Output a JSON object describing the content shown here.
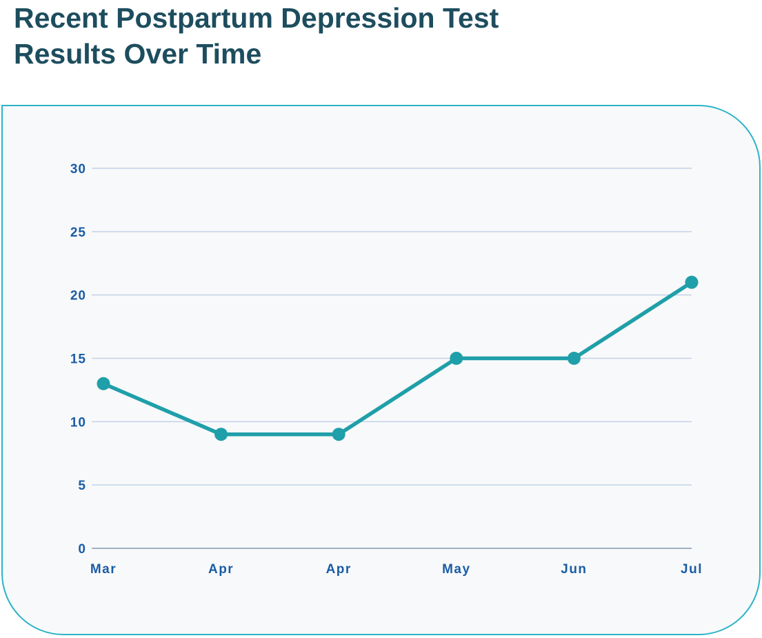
{
  "page": {
    "title_line1": "Recent Postpartum Depression Test",
    "title_line2": "Results Over Time"
  },
  "colors": {
    "title_text": "#1d4d5e",
    "axis_labels": "#1a5ca5",
    "line": "#1f9fa9",
    "point": "#1f9fa9",
    "gridline": "#c2d2e8",
    "zero_line": "#9fafc0",
    "card_border": "#2ab3c6",
    "card_background": "#f8f9fa"
  },
  "chart_data": {
    "type": "line",
    "title": "Recent Postpartum Depression Test Results Over Time",
    "categories": [
      "Mar",
      "Apr",
      "Apr",
      "May",
      "Jun",
      "Jul"
    ],
    "values": [
      13,
      9,
      9,
      15,
      15,
      21
    ],
    "yticks": [
      0,
      5,
      10,
      15,
      20,
      25,
      30
    ],
    "ylim": [
      0,
      30
    ],
    "xlabel": "",
    "ylabel": "",
    "grid": true,
    "legend": false,
    "marker": "circle"
  }
}
